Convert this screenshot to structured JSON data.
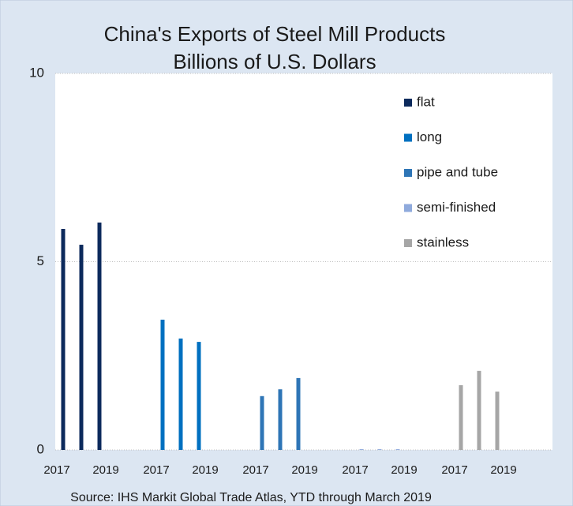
{
  "chart_data": {
    "type": "bar",
    "title": "China's Exports of Steel Mill Products",
    "subtitle": "Billions of U.S. Dollars",
    "source": "Source: IHS Markit Global Trade Atlas, YTD through March 2019",
    "categories": [
      "2017",
      null,
      "2019"
    ],
    "series": [
      {
        "name": "flat",
        "color": "#0c2a5c",
        "values": [
          5.87,
          5.45,
          6.04
        ]
      },
      {
        "name": "long",
        "color": "#0070c0",
        "values": [
          3.46,
          2.96,
          2.87
        ]
      },
      {
        "name": "pipe and tube",
        "color": "#2e75b6",
        "values": [
          1.43,
          1.61,
          1.91
        ]
      },
      {
        "name": "semi-finished",
        "color": "#8faadc",
        "values": [
          0.02,
          0.02,
          0.02
        ]
      },
      {
        "name": "stainless",
        "color": "#a6a6a6",
        "values": [
          1.72,
          2.1,
          1.55
        ]
      }
    ],
    "ylim": [
      0,
      10
    ],
    "yticks": [
      0,
      5,
      10
    ],
    "grid": true,
    "legend": "right"
  }
}
